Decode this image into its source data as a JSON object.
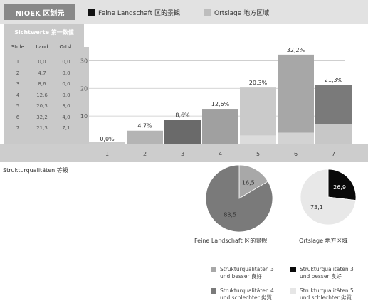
{
  "title": "NIOEK 区划元",
  "legend_top": [
    {
      "label": "Feine Landschaft 区的景観",
      "color": "#111111"
    },
    {
      "label": "Ortslage 地方区域",
      "color": "#bdbdbd"
    }
  ],
  "table": {
    "subtitle": "Sichtwerte 第一数値",
    "headers": [
      "Stufe",
      "Land",
      "Ortsl."
    ],
    "rows": [
      [
        "1",
        "0,0",
        "0,0"
      ],
      [
        "2",
        "4,7",
        "0,0"
      ],
      [
        "3",
        "8,6",
        "0,0"
      ],
      [
        "4",
        "12,6",
        "0,0"
      ],
      [
        "5",
        "20,3",
        "3,0"
      ],
      [
        "6",
        "32,2",
        "4,0"
      ],
      [
        "7",
        "21,3",
        "7,1"
      ]
    ]
  },
  "pie_heading": "Strukturqualitäten 等級",
  "pies": [
    {
      "label": "Feine Landschaft 区的景観",
      "values": [
        16.5,
        83.5
      ],
      "texts": [
        "16,5",
        "83,5"
      ],
      "colors": [
        "#a8a8a8",
        "#7a7a7a"
      ]
    },
    {
      "label": "Ortslage 地方区域",
      "values": [
        26.9,
        73.1
      ],
      "texts": [
        "26,9",
        "73,1"
      ],
      "colors": [
        "#0a0a0a",
        "#e8e8e8"
      ]
    }
  ],
  "bottom_legend": [
    {
      "text": "Strukturqualitäten 3\nund besser 良好",
      "color": "#a8a8a8"
    },
    {
      "text": "Strukturqualitäten 3\nund besser 良好",
      "color": "#0a0a0a"
    },
    {
      "text": "Strukturqualitäten 4\nund schlechter 劣質",
      "color": "#7a7a7a"
    },
    {
      "text": "Strukturqualitäten 5\nund schlechter 劣質",
      "color": "#e6e6e6"
    }
  ],
  "chart_data": {
    "type": "bar",
    "categories": [
      "1",
      "2",
      "3",
      "4",
      "5",
      "6",
      "7"
    ],
    "ylim": [
      0,
      35
    ],
    "yticks": [
      10,
      20,
      30
    ],
    "series": [
      {
        "name": "Feine Landschaft 区的景観",
        "values": [
          0.0,
          4.7,
          8.6,
          12.6,
          20.3,
          32.2,
          21.3
        ]
      },
      {
        "name": "Ortslage 地方区域",
        "values": [
          0.0,
          0.0,
          0.0,
          0.0,
          3.0,
          4.0,
          7.1
        ]
      }
    ],
    "labels": [
      "0,0%",
      "4,7%",
      "8,6%",
      "12,6%",
      "20,3%",
      "32,2%",
      "21,3%"
    ],
    "colors": [
      "#ffffff",
      "#b4b4b4",
      "#6a6a6a",
      "#a0a0a0",
      "#cacaca",
      "#a7a7a7",
      "#7a7a7a"
    ],
    "overlay_color": "#e2e2e2",
    "grid": true,
    "legend": "top"
  }
}
